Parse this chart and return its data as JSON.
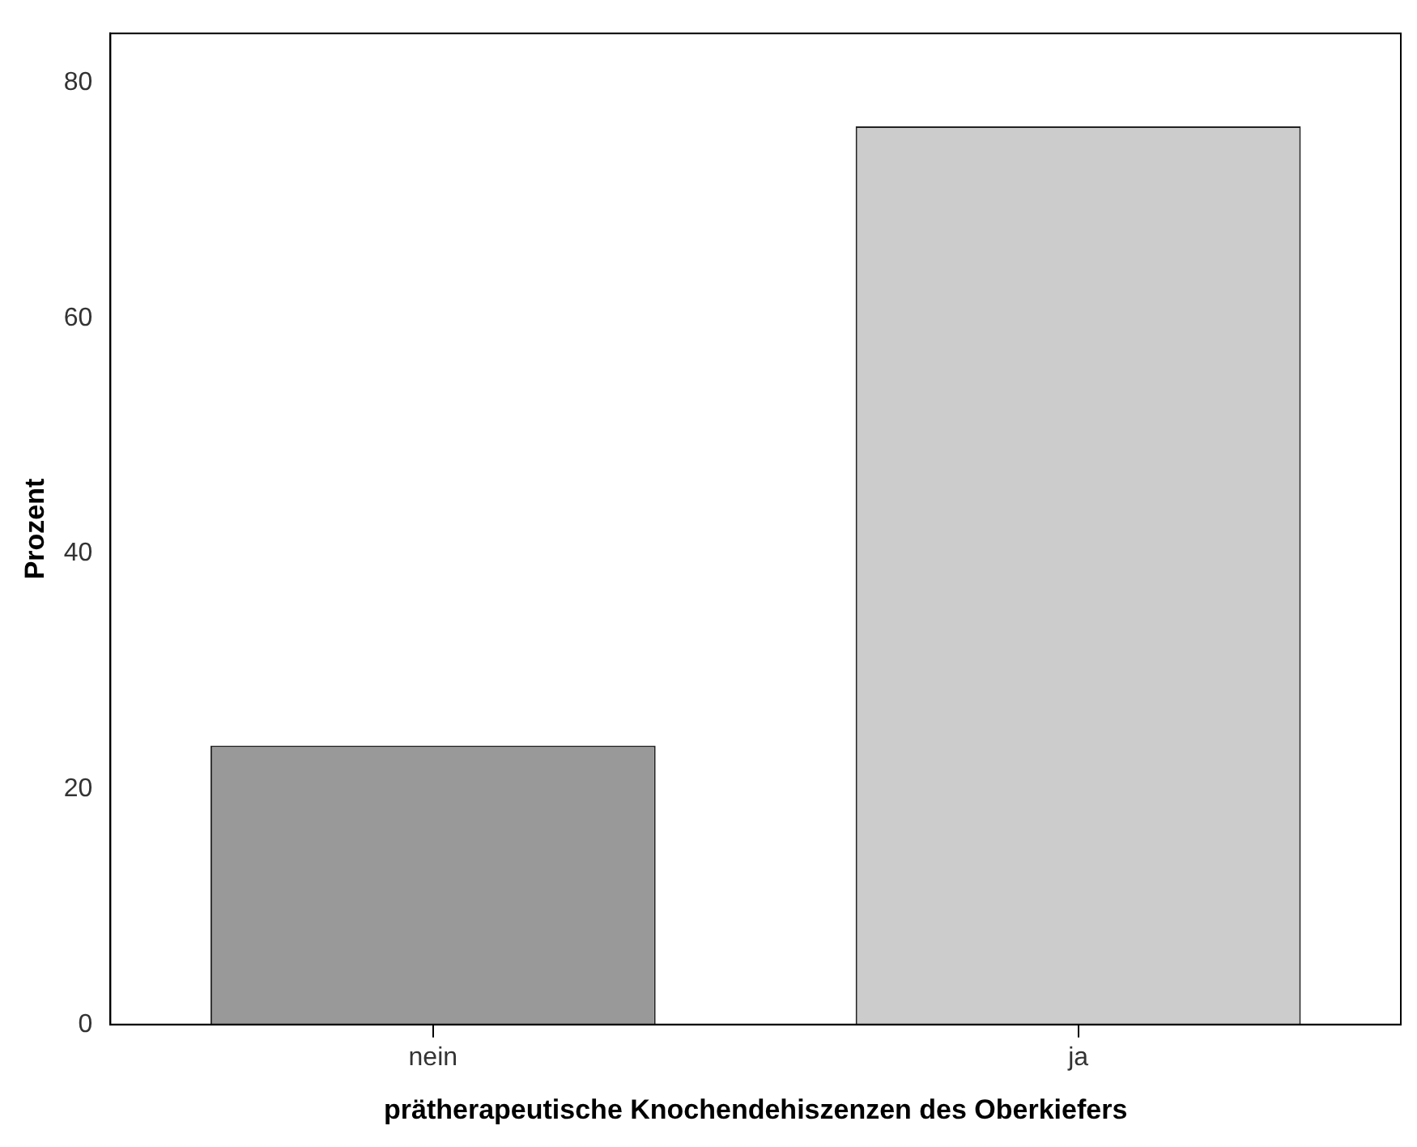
{
  "chart_data": {
    "type": "bar",
    "xlabel": "prätherapeutische Knochendehiszenzen des Oberkiefers",
    "ylabel": "Prozent",
    "categories": [
      "nein",
      "ja"
    ],
    "values": [
      23.7,
      76.3
    ],
    "colors": [
      "#999999",
      "#cccccc"
    ],
    "ylim": [
      0,
      84.2
    ],
    "yticks": [
      0,
      20,
      40,
      60,
      80
    ],
    "grid": false,
    "legend": false
  }
}
